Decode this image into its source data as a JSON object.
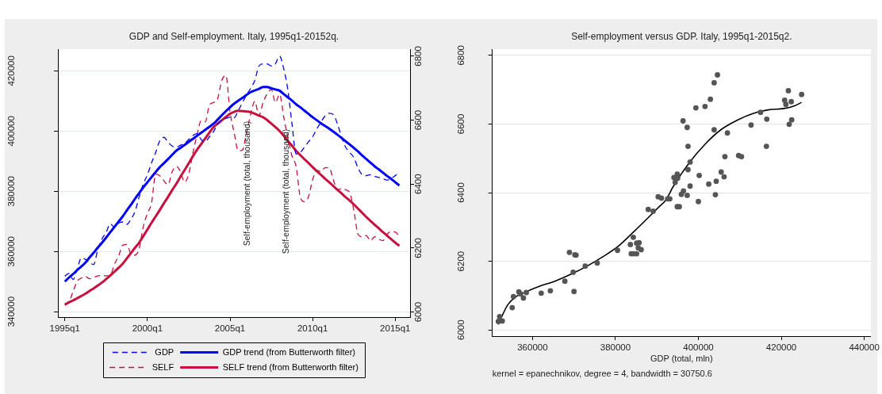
{
  "chart_data": [
    {
      "type": "line",
      "title": "GDP and Self-employment. Italy, 1995q1-20152q.",
      "categories": [
        "1995q1",
        null,
        null,
        null,
        null,
        null,
        null,
        null,
        null,
        null,
        null,
        null,
        null,
        null,
        null,
        null,
        null,
        null,
        null,
        null,
        "2000q1",
        null,
        null,
        null,
        null,
        null,
        null,
        null,
        null,
        null,
        null,
        null,
        null,
        null,
        null,
        null,
        null,
        null,
        null,
        null,
        "2005q1",
        null,
        null,
        null,
        null,
        null,
        null,
        null,
        null,
        null,
        null,
        null,
        null,
        null,
        null,
        null,
        null,
        null,
        null,
        null,
        "2010q1",
        null,
        null,
        null,
        null,
        null,
        null,
        null,
        null,
        null,
        null,
        null,
        null,
        null,
        null,
        null,
        null,
        null,
        null,
        null,
        "2015q1",
        null
      ],
      "series": [
        {
          "name": "GDP",
          "color": "#0000ff",
          "line_style": "dashed",
          "values": [
            351800,
            352700,
            350700,
            354200,
            357800,
            357400,
            356200,
            355700,
            360700,
            364200,
            366300,
            369200,
            368100,
            369400,
            369800,
            369000,
            370700,
            373300,
            378100,
            382400,
            385500,
            389400,
            392900,
            396800,
            397900,
            396300,
            395000,
            394600,
            395300,
            395900,
            397200,
            398500,
            399100,
            397200,
            396500,
            398100,
            399800,
            402400,
            403700,
            404200,
            404600,
            404400,
            406800,
            409400,
            412000,
            414200,
            416800,
            421600,
            422300,
            422300,
            421600,
            422400,
            424900,
            420700,
            413700,
            402400,
            392400,
            392900,
            394600,
            396400,
            398100,
            400700,
            402900,
            405000,
            405900,
            405500,
            402400,
            398100,
            394600,
            392900,
            391100,
            387700,
            385500,
            385200,
            385500,
            385000,
            384600,
            384200,
            383700,
            384200,
            385200,
            386300
          ]
        },
        {
          "name": "GDP trend (from Butterworth filter)",
          "color": "#0000ff",
          "values": [
            350000,
            351300,
            352500,
            353800,
            355000,
            356300,
            358000,
            359600,
            361300,
            362900,
            364600,
            366400,
            368100,
            369900,
            371600,
            373600,
            375500,
            377500,
            379400,
            381300,
            383000,
            384700,
            386400,
            388000,
            389300,
            390700,
            392100,
            393500,
            394400,
            395400,
            396400,
            397400,
            398400,
            399400,
            400400,
            401400,
            402400,
            403800,
            405200,
            406600,
            407900,
            409100,
            410100,
            411000,
            412000,
            412900,
            413500,
            414000,
            414600,
            414600,
            414200,
            413800,
            413400,
            412300,
            411200,
            410100,
            408900,
            407900,
            406800,
            405700,
            404600,
            403600,
            402600,
            401700,
            400800,
            399800,
            398800,
            397700,
            396600,
            395500,
            394400,
            393200,
            391900,
            390700,
            389500,
            388300,
            387300,
            386200,
            385100,
            384100,
            383000,
            381900
          ]
        },
        {
          "name": "SELF",
          "color": "#c8103e",
          "line_style": "dashed",
          "axis": "y2",
          "values": [
            6021,
            6031,
            6064,
            6096,
            6106,
            6111,
            6104,
            6108,
            6113,
            6114,
            6113,
            6114,
            6149,
            6174,
            6208,
            6211,
            6182,
            6178,
            6198,
            6267,
            6308,
            6341,
            6431,
            6426,
            6410,
            6398,
            6439,
            6455,
            6439,
            6406,
            6431,
            6496,
            6553,
            6598,
            6594,
            6647,
            6655,
            6667,
            6724,
            6740,
            6626,
            6561,
            6504,
            6506,
            6561,
            6618,
            6659,
            6614,
            6655,
            6682,
            6696,
            6655,
            6681,
            6610,
            6545,
            6488,
            6455,
            6360,
            6345,
            6360,
            6414,
            6443,
            6439,
            6451,
            6451,
            6414,
            6382,
            6386,
            6382,
            6373,
            6316,
            6243,
            6235,
            6239,
            6223,
            6235,
            6228,
            6223,
            6243,
            6251,
            6250,
            6236
          ]
        },
        {
          "name": "SELF trend (from Butterworth filter)",
          "color": "#c8103e",
          "axis": "y2",
          "values": [
            6023,
            6030,
            6036,
            6043,
            6050,
            6057,
            6066,
            6074,
            6083,
            6092,
            6103,
            6114,
            6126,
            6138,
            6151,
            6167,
            6184,
            6201,
            6217,
            6237,
            6258,
            6279,
            6299,
            6319,
            6340,
            6360,
            6381,
            6401,
            6423,
            6444,
            6465,
            6487,
            6507,
            6525,
            6543,
            6561,
            6578,
            6589,
            6599,
            6610,
            6620,
            6626,
            6629,
            6628,
            6627,
            6625,
            6620,
            6614,
            6609,
            6600,
            6589,
            6578,
            6566,
            6551,
            6535,
            6520,
            6504,
            6491,
            6478,
            6466,
            6453,
            6441,
            6429,
            6417,
            6406,
            6394,
            6382,
            6371,
            6359,
            6348,
            6336,
            6323,
            6310,
            6297,
            6285,
            6273,
            6262,
            6250,
            6239,
            6228,
            6217,
            6207
          ]
        }
      ],
      "ylim": [
        338200,
        427200
      ],
      "yticks": [
        340000,
        360000,
        380000,
        400000,
        420000
      ],
      "y2lim": [
        5984,
        6822
      ],
      "y2ticks": [
        6000,
        6200,
        6400,
        6600,
        6800
      ],
      "grid": "y",
      "legend": "bottom",
      "annotations": [
        "Self-employment (total, thousand)",
        "Self-employment (total, thousand)"
      ]
    },
    {
      "type": "scatter",
      "title": "Self-employment versus GDP. Italy, 1995q1-2015q2.",
      "xlabel": "GDP (total, mln)",
      "series": [
        {
          "color": "#555555",
          "marker": "circle",
          "x": [
            351750,
            352060,
            352700,
            355100,
            355400,
            356700,
            357100,
            357800,
            358500,
            362100,
            364300,
            367800,
            368900,
            369800,
            370000,
            370200,
            370500,
            372700,
            375600,
            380500,
            383600,
            383800,
            384400,
            385100,
            384300,
            385100,
            385700,
            385500,
            386200,
            387900,
            389100,
            390300,
            391100,
            392600,
            393100,
            394900,
            395400,
            395900,
            396400,
            397300,
            394900,
            394100,
            395000,
            394400,
            396300,
            397300,
            397500,
            398000,
            397500,
            398000,
            399400,
            400000,
            400200,
            401600,
            402500,
            402900,
            403800,
            404600,
            403800,
            404100,
            404300,
            405500,
            406200,
            406400,
            407000,
            409700,
            410400,
            412700,
            415000,
            416500,
            416400,
            420800,
            421100,
            421700,
            422400,
            421900,
            422500,
            424900
          ],
          "values": [
            6025,
            6039,
            6026,
            6065,
            6097,
            6111,
            6105,
            6093,
            6109,
            6107,
            6114,
            6142,
            6226,
            6168,
            6112,
            6219,
            6218,
            6186,
            6195,
            6232,
            6249,
            6222,
            6222,
            6222,
            6270,
            6253,
            6254,
            6239,
            6234,
            6351,
            6346,
            6388,
            6384,
            6382,
            6382,
            6359,
            6359,
            6395,
            6405,
            6392,
            6454,
            6444,
            6442,
            6430,
            6609,
            6590,
            6535,
            6489,
            6467,
            6419,
            6647,
            6374,
            6450,
            6651,
            6425,
            6672,
            6720,
            6743,
            6583,
            6394,
            6433,
            6460,
            6446,
            6505,
            6574,
            6508,
            6505,
            6597,
            6634,
            6614,
            6535,
            6669,
            6657,
            6697,
            6665,
            6599,
            6612,
            6686
          ]
        },
        {
          "type": "line",
          "color": "#000000",
          "marker": "none",
          "x": [
            351750,
            352400,
            354000,
            355900,
            358400,
            361600,
            365400,
            369200,
            373000,
            376800,
            380600,
            384400,
            388300,
            390200,
            392100,
            394000,
            397800,
            401600,
            405400,
            409200,
            413000,
            416800,
            420600,
            423200,
            424900
          ],
          "values": [
            6016,
            6034,
            6073,
            6096,
            6111,
            6127,
            6142,
            6162,
            6185,
            6212,
            6243,
            6286,
            6332,
            6355,
            6378,
            6419,
            6487,
            6541,
            6583,
            6610,
            6630,
            6641,
            6645,
            6653,
            6663
          ]
        }
      ],
      "xlim": [
        350300,
        441600
      ],
      "xticks": [
        360000,
        380000,
        400000,
        420000,
        440000
      ],
      "ylim": [
        5982,
        6818
      ],
      "yticks": [
        6000,
        6200,
        6400,
        6600,
        6800
      ],
      "grid": "y",
      "annotations": [
        "kernel = epanechnikov, degree = 4, bandwidth = 30750.6"
      ]
    }
  ]
}
